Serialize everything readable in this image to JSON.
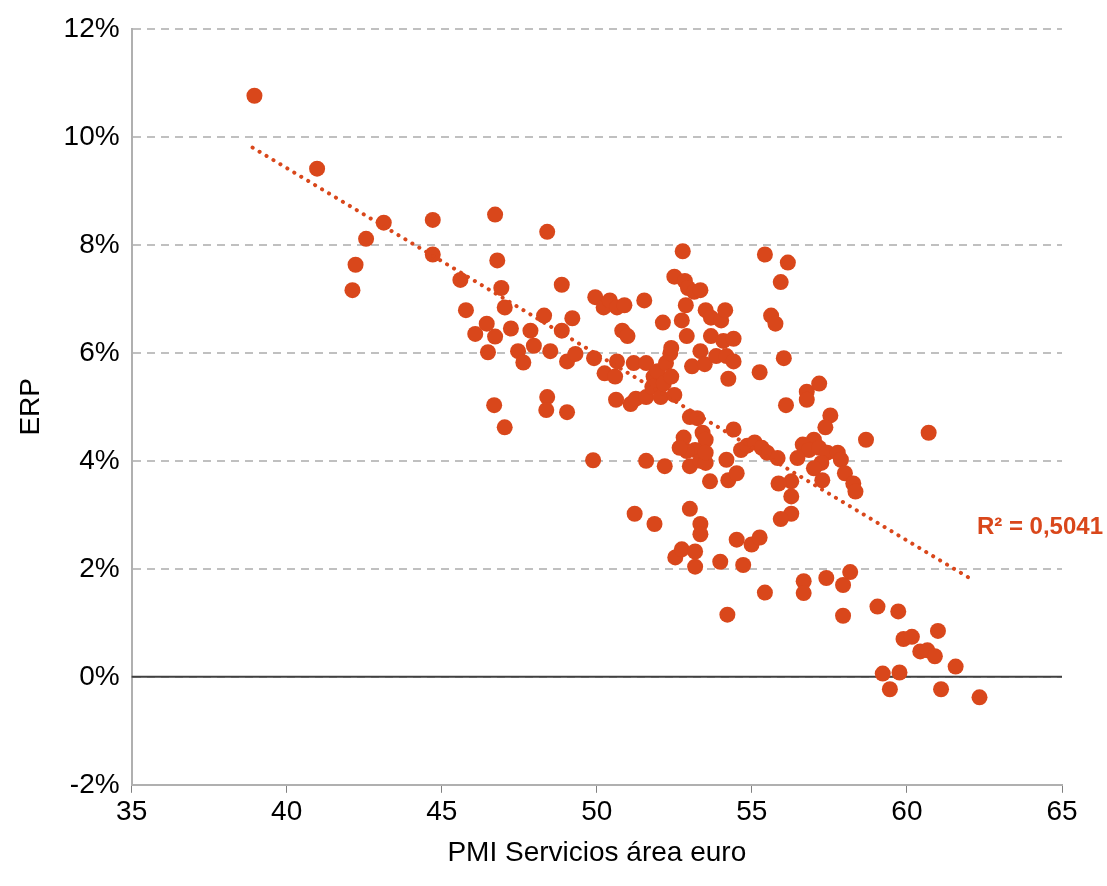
{
  "chart_data": {
    "type": "scatter",
    "xlabel": "PMI Servicios área euro",
    "ylabel": "ERP",
    "xlim": [
      35,
      65
    ],
    "xticks": [
      35,
      40,
      45,
      50,
      55,
      60,
      65
    ],
    "ylim": [
      -2,
      12
    ],
    "yticks": [
      {
        "value": -2,
        "label": "-2%"
      },
      {
        "value": 0,
        "label": "0%"
      },
      {
        "value": 2,
        "label": "2%"
      },
      {
        "value": 4,
        "label": "4%"
      },
      {
        "value": 6,
        "label": "6%"
      },
      {
        "value": 8,
        "label": "8%"
      },
      {
        "value": 10,
        "label": "10%"
      },
      {
        "value": 12,
        "label": "12%"
      }
    ],
    "grid": "y",
    "legend": false,
    "marker": "circle",
    "ref_lines": [
      {
        "axis": "y",
        "value": 0,
        "color": "#404040"
      }
    ],
    "annotations": [
      "R² = 0,5041"
    ],
    "series": [
      {
        "color": "#d9471b",
        "x": [
          38.96,
          40.98,
          42.56,
          43.13,
          42.22,
          42.12,
          44.71,
          44.71,
          46.72,
          46.79,
          46.92,
          48.4,
          45.6,
          45.78,
          46.08,
          46.45,
          46.49,
          46.72,
          47.03,
          47.23,
          47.46,
          47.63,
          47.86,
          47.97,
          48.3,
          48.5,
          48.87,
          48.87,
          49.04,
          49.21,
          49.31,
          46.69,
          47.03,
          48.4,
          48.37,
          49.04,
          49.88,
          49.95,
          49.91,
          50.22,
          50.42,
          50.65,
          50.89,
          50.25,
          50.59,
          50.65,
          50.82,
          50.99,
          50.62,
          51.09,
          51.26,
          51.19,
          51.53,
          51.59,
          51.59,
          51.83,
          51.79,
          51.96,
          52.06,
          52.16,
          52.23,
          52.13,
          52.37,
          52.4,
          52.5,
          52.4,
          52.5,
          52.77,
          52.84,
          52.74,
          52.87,
          52.94,
          53.14,
          53.34,
          52.9,
          53.07,
          53.51,
          53.68,
          53.68,
          54.01,
          54.14,
          54.08,
          53.34,
          53.48,
          53.85,
          54.41,
          54.18,
          54.24,
          54.41,
          51.59,
          52.19,
          53.0,
          53.24,
          53.41,
          53.51,
          53.17,
          52.9,
          52.8,
          52.67,
          53.0,
          53.34,
          53.51,
          53.51,
          53.65,
          54.41,
          54.18,
          54.24,
          54.51,
          54.65,
          54.85,
          55.09,
          55.32,
          55.49,
          55.83,
          53.0,
          53.34,
          53.34,
          51.22,
          51.86,
          52.53,
          52.74,
          53.17,
          53.17,
          53.98,
          54.51,
          54.72,
          54.99,
          55.25,
          54.21,
          55.42,
          55.42,
          56.16,
          55.93,
          55.62,
          55.76,
          56.03,
          55.25,
          56.1,
          56.77,
          56.77,
          57.17,
          57.53,
          57.37,
          57.0,
          56.64,
          56.84,
          56.47,
          57.17,
          57.43,
          57.24,
          57.0,
          57.77,
          57.87,
          58.0,
          58.27,
          58.34,
          57.27,
          56.27,
          55.86,
          58.68,
          56.27,
          56.27,
          55.93,
          60.7,
          56.67,
          56.67,
          57.4,
          57.94,
          57.94,
          58.17,
          59.05,
          59.72,
          59.89,
          60.16,
          60.43,
          60.66,
          60.9,
          61.0,
          59.22,
          59.45,
          59.76,
          61.1,
          61.57,
          62.34
        ],
        "values": [
          10.76,
          9.41,
          8.11,
          8.41,
          7.63,
          7.16,
          8.46,
          7.82,
          8.56,
          7.71,
          7.2,
          8.24,
          7.35,
          6.79,
          6.35,
          6.54,
          6.01,
          6.3,
          6.84,
          6.45,
          6.03,
          5.82,
          6.41,
          6.13,
          6.69,
          6.03,
          7.26,
          6.41,
          5.84,
          6.64,
          5.98,
          5.03,
          4.62,
          5.18,
          4.94,
          4.9,
          4.01,
          7.03,
          5.9,
          6.84,
          6.97,
          6.84,
          6.88,
          5.62,
          5.56,
          5.84,
          6.41,
          6.31,
          5.13,
          5.05,
          5.15,
          5.81,
          6.97,
          5.81,
          5.18,
          5.56,
          5.37,
          5.66,
          5.18,
          5.43,
          5.81,
          6.56,
          5.99,
          5.56,
          5.22,
          6.09,
          7.41,
          7.88,
          7.33,
          6.6,
          6.88,
          7.2,
          7.13,
          7.16,
          6.31,
          5.75,
          6.79,
          6.65,
          6.31,
          6.6,
          6.79,
          6.22,
          6.03,
          5.79,
          5.94,
          6.26,
          5.94,
          5.52,
          5.84,
          4.0,
          3.9,
          4.81,
          4.79,
          4.52,
          4.39,
          4.2,
          4.18,
          4.43,
          4.24,
          3.9,
          4.0,
          3.96,
          4.15,
          3.62,
          4.58,
          4.02,
          3.64,
          3.77,
          4.2,
          4.28,
          4.34,
          4.24,
          4.15,
          4.05,
          3.11,
          2.83,
          2.64,
          3.02,
          2.83,
          2.21,
          2.36,
          2.32,
          2.04,
          2.13,
          2.54,
          2.07,
          2.45,
          2.58,
          1.15,
          1.56,
          7.82,
          7.67,
          7.31,
          6.69,
          6.54,
          5.9,
          5.64,
          5.03,
          5.28,
          5.13,
          5.43,
          4.84,
          4.62,
          4.39,
          4.3,
          4.2,
          4.05,
          4.24,
          4.15,
          3.96,
          3.86,
          4.15,
          4.02,
          3.77,
          3.58,
          3.43,
          3.64,
          3.62,
          3.58,
          4.39,
          3.34,
          3.02,
          2.92,
          4.52,
          1.77,
          1.55,
          1.83,
          1.13,
          1.7,
          1.94,
          1.3,
          1.21,
          0.7,
          0.74,
          0.47,
          0.49,
          0.38,
          0.85,
          0.06,
          -0.23,
          0.08,
          -0.23,
          0.19,
          -0.38
        ]
      },
      {
        "type": "line",
        "color": "#d9471b",
        "line_style": "dotted",
        "marker": "none",
        "x": [
          38.9,
          62.1
        ],
        "values": [
          9.8,
          1.8
        ]
      }
    ]
  }
}
